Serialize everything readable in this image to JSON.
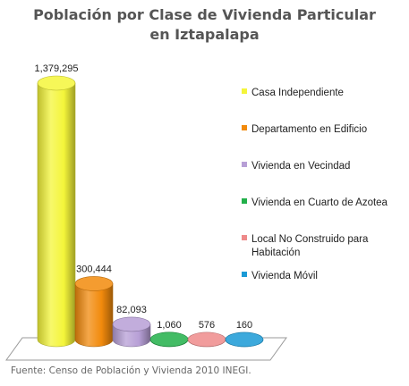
{
  "title_line1": "Población por Clase de Vivienda Particular",
  "title_line2": "en Iztapalapa",
  "source": "Fuente: Censo de Población y Vivienda 2010 INEGI.",
  "chart_data": {
    "type": "bar",
    "title": "Población por Clase de Vivienda Particular en Iztapalapa",
    "style": "3d-cylinder",
    "categories": [
      "Casa Independiente",
      "Departamento en Edificio",
      "Vivienda en Vecindad",
      "Vivienda en Cuarto de Azotea",
      "Local No Construido para Habitación",
      "Vivienda Móvil"
    ],
    "values": [
      1379295,
      300444,
      82093,
      1060,
      576,
      160
    ],
    "value_labels": [
      "1,379,295",
      "300,444",
      "82,093",
      "1,060",
      "576",
      "160"
    ],
    "legend": {
      "position": "right",
      "entries": [
        {
          "lines": [
            "Casa Independiente"
          ],
          "color": "#f4f53a"
        },
        {
          "lines": [
            "Departamento en Edificio"
          ],
          "color": "#f28a0c"
        },
        {
          "lines": [
            "Vivienda en Vecindad"
          ],
          "color": "#b79fd6"
        },
        {
          "lines": [
            "Vivienda en Cuarto de Azotea"
          ],
          "color": "#22b04a"
        },
        {
          "lines": [
            "Local No Construido para",
            "Habitación"
          ],
          "color": "#ee8a8a"
        },
        {
          "lines": [
            "Vivienda Móvil"
          ],
          "color": "#1a9ad6"
        }
      ]
    },
    "xlabel": "",
    "ylabel": "",
    "grid": false
  }
}
